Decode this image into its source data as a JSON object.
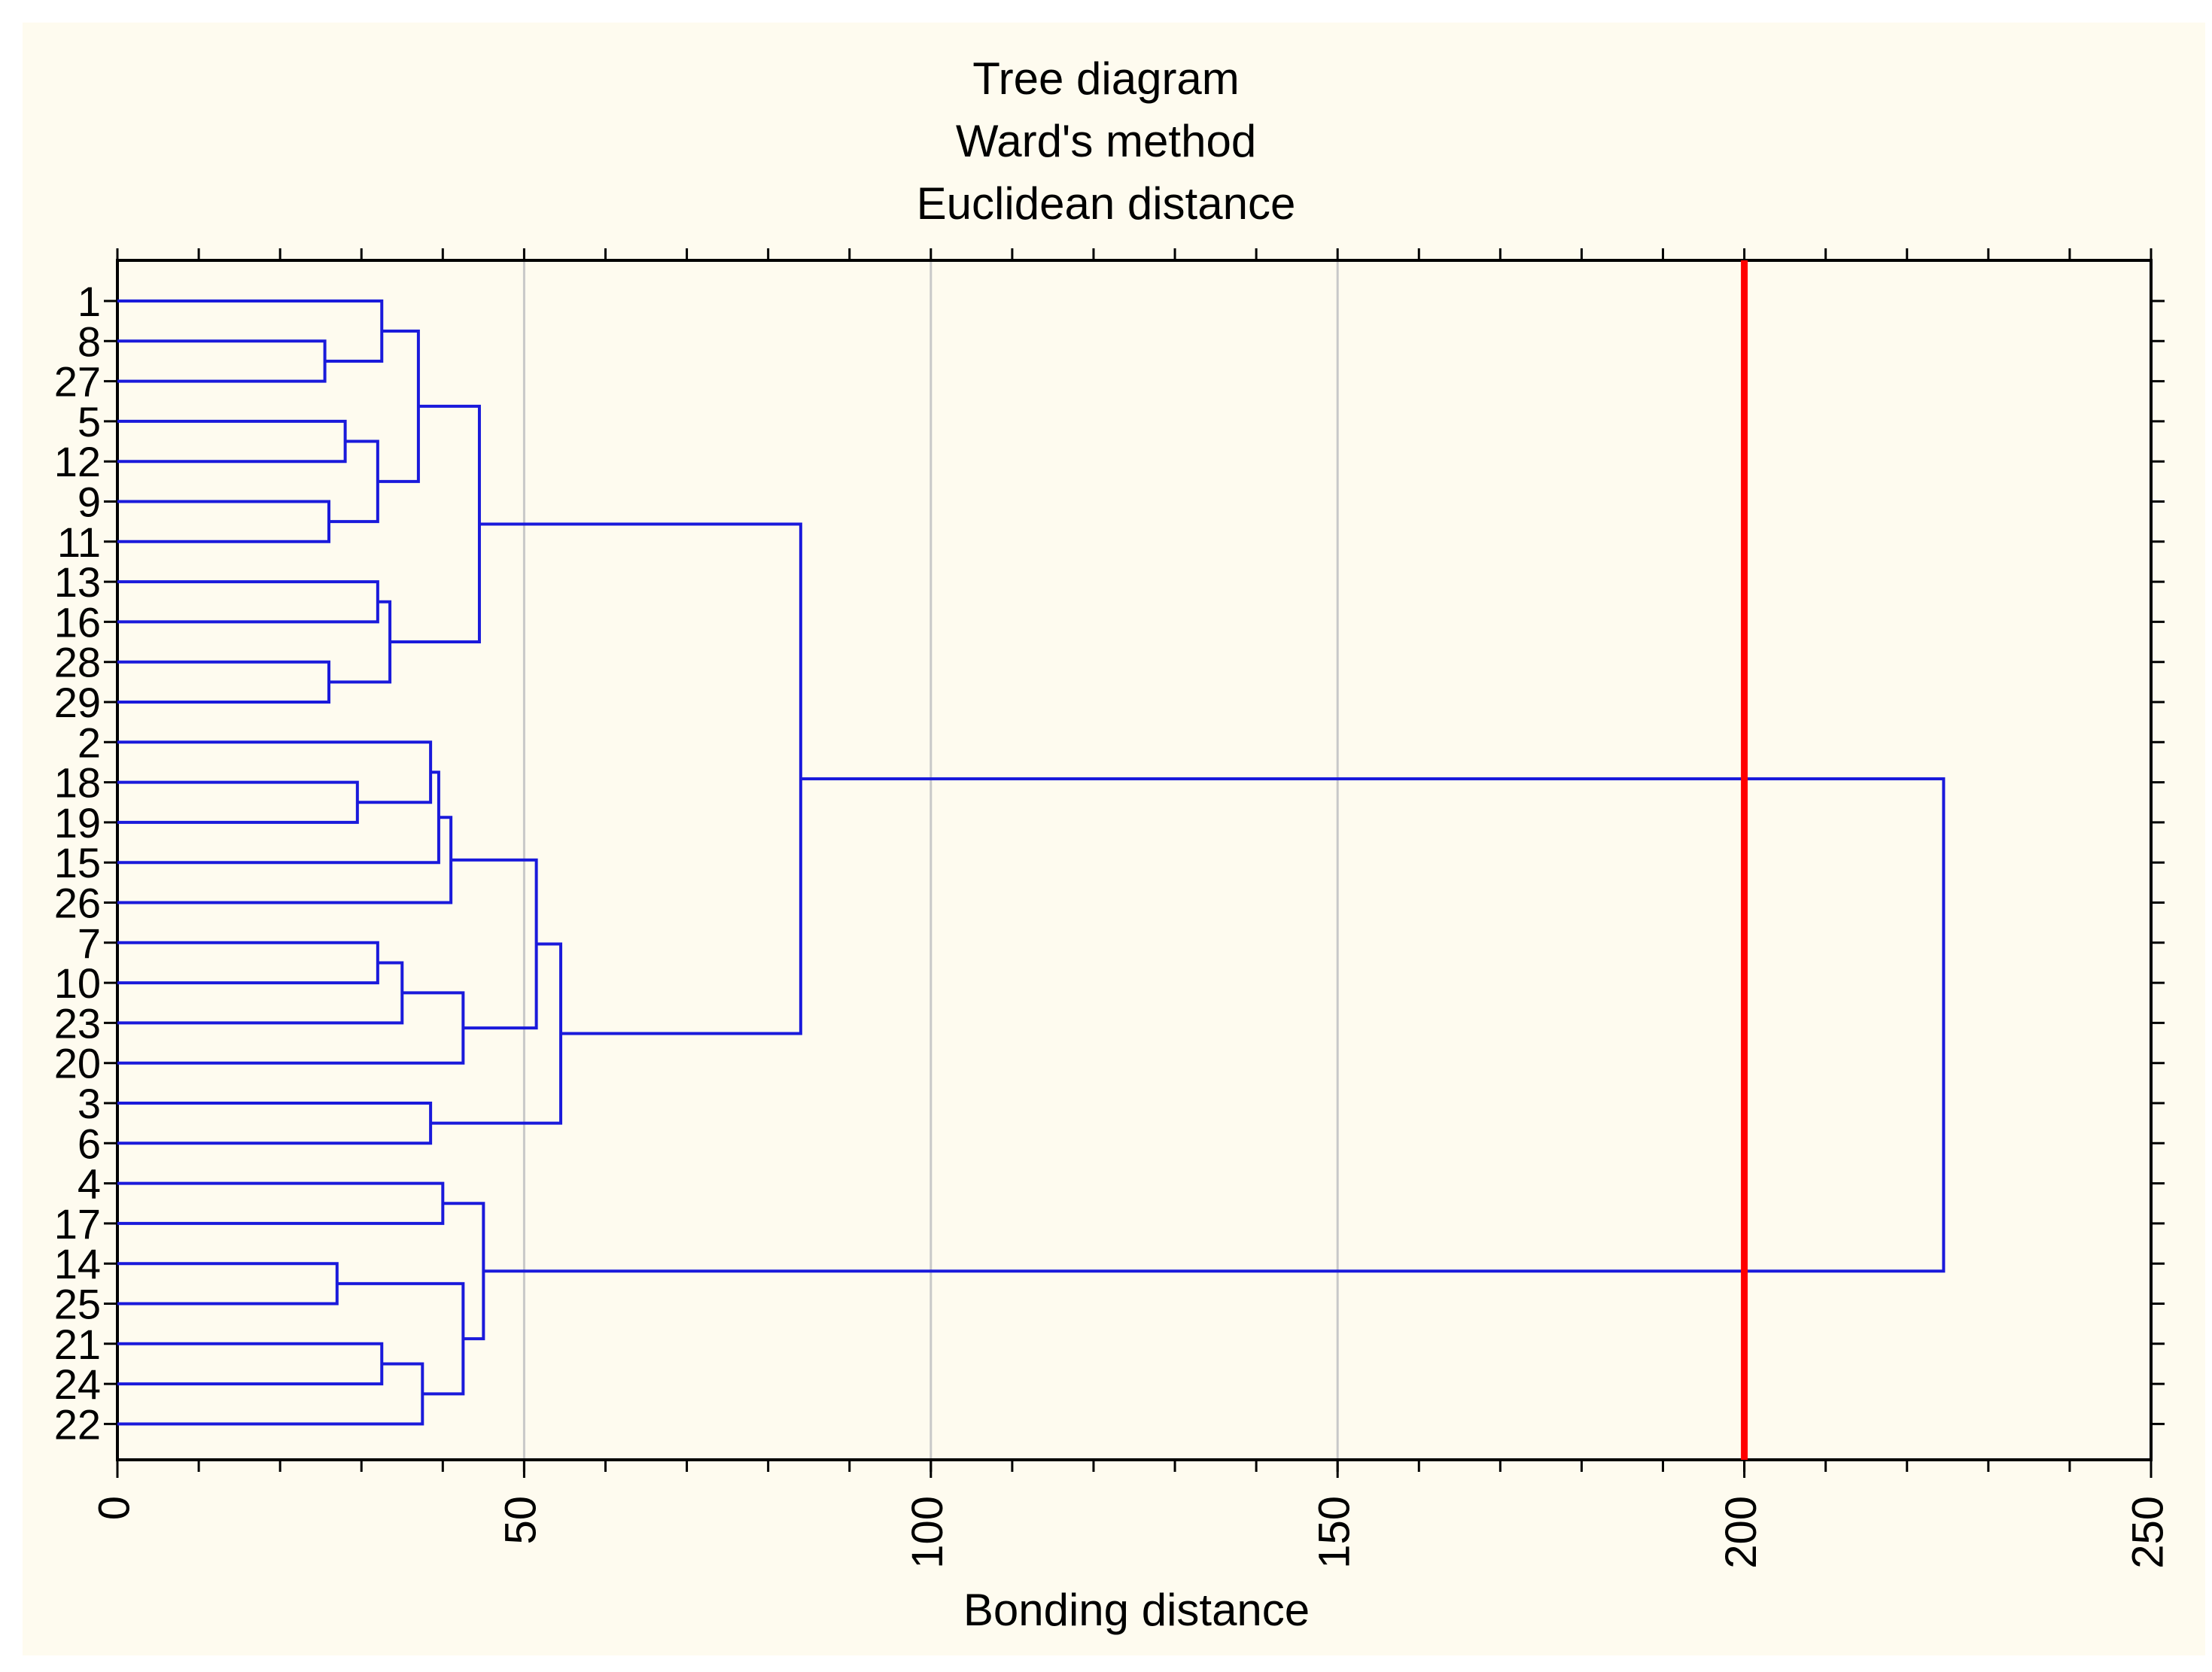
{
  "chart_data": {
    "type": "dendrogram",
    "title": [
      "Tree diagram",
      "Ward's method",
      "Euclidean distance"
    ],
    "xlabel": "Bonding distance",
    "xlim": [
      0,
      250
    ],
    "xticks": [
      0,
      50,
      100,
      150,
      200,
      250
    ],
    "grid": true,
    "leaves": [
      "1",
      "8",
      "27",
      "5",
      "12",
      "9",
      "11",
      "13",
      "16",
      "28",
      "29",
      "2",
      "18",
      "19",
      "15",
      "26",
      "7",
      "10",
      "23",
      "20",
      "3",
      "6",
      "4",
      "17",
      "14",
      "25",
      "21",
      "24",
      "22"
    ],
    "merges": [
      {
        "a": "8",
        "b": "27",
        "h": 25.5
      },
      {
        "a": "1",
        "b": "m0",
        "h": 32.5
      },
      {
        "a": "5",
        "b": "12",
        "h": 28
      },
      {
        "a": "9",
        "b": "11",
        "h": 26
      },
      {
        "a": "m2",
        "b": "m3",
        "h": 32
      },
      {
        "a": "m1",
        "b": "m4",
        "h": 37
      },
      {
        "a": "13",
        "b": "16",
        "h": 32
      },
      {
        "a": "28",
        "b": "29",
        "h": 26
      },
      {
        "a": "m6",
        "b": "m7",
        "h": 33.5
      },
      {
        "a": "m5",
        "b": "m8",
        "h": 44.5
      },
      {
        "a": "18",
        "b": "19",
        "h": 29.5
      },
      {
        "a": "2",
        "b": "m10",
        "h": 38.5
      },
      {
        "a": "m11",
        "b": "15",
        "h": 39.5
      },
      {
        "a": "m12",
        "b": "26",
        "h": 41
      },
      {
        "a": "7",
        "b": "10",
        "h": 32
      },
      {
        "a": "m14",
        "b": "23",
        "h": 35
      },
      {
        "a": "m15",
        "b": "20",
        "h": 42.5
      },
      {
        "a": "m13",
        "b": "m16",
        "h": 51.5
      },
      {
        "a": "3",
        "b": "6",
        "h": 38.5
      },
      {
        "a": "m17",
        "b": "m18",
        "h": 54.5
      },
      {
        "a": "m9",
        "b": "m19",
        "h": 84
      },
      {
        "a": "4",
        "b": "17",
        "h": 40
      },
      {
        "a": "14",
        "b": "25",
        "h": 27
      },
      {
        "a": "21",
        "b": "24",
        "h": 32.5
      },
      {
        "a": "m23",
        "b": "22",
        "h": 37.5
      },
      {
        "a": "m22",
        "b": "m24",
        "h": 42.5
      },
      {
        "a": "m21",
        "b": "m25",
        "h": 45
      },
      {
        "a": "m20",
        "b": "m26",
        "h": 224.5
      }
    ],
    "cutoff": 200,
    "colors": {
      "tree": "#1a1adb",
      "cutoff": "#ff0000",
      "grid": "#c8c8c8",
      "axis": "#000000",
      "background": "#fefbef"
    }
  }
}
